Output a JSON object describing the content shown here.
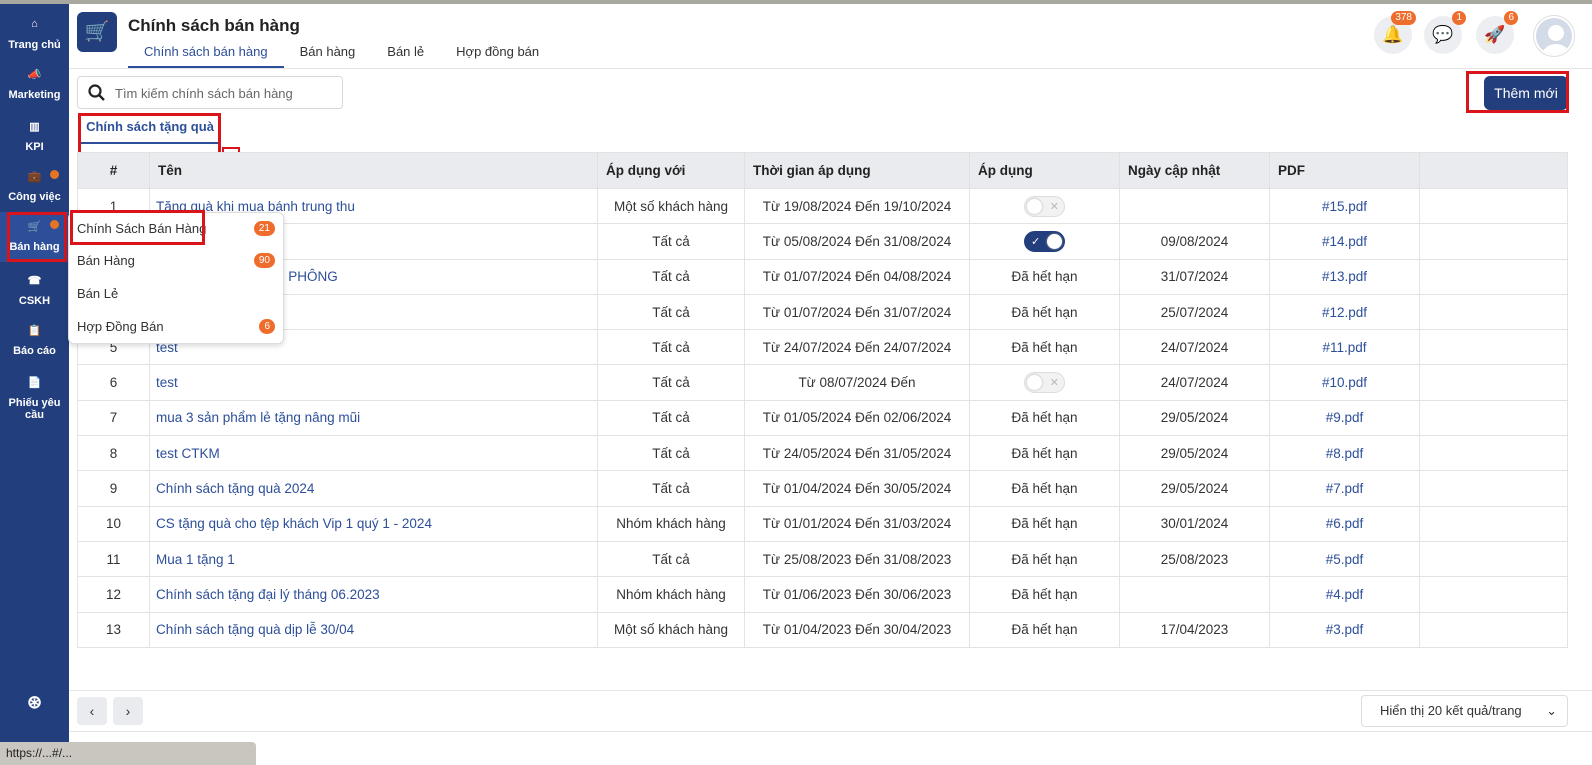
{
  "sidebar": {
    "items": [
      {
        "label": "Trang chủ",
        "icon": "home-icon"
      },
      {
        "label": "Marketing",
        "icon": "megaphone-icon"
      },
      {
        "label": "KPI",
        "icon": "chart-icon"
      },
      {
        "label": "Công việc",
        "icon": "briefcase-icon",
        "dot": true
      },
      {
        "label": "Bán hàng",
        "icon": "cart-icon",
        "dot": true,
        "active": true
      },
      {
        "label": "CSKH",
        "icon": "phone-icon"
      },
      {
        "label": "Báo cáo",
        "icon": "clipboard-icon"
      },
      {
        "label": "Phiếu yêu cầu",
        "icon": "file-icon"
      }
    ]
  },
  "header": {
    "title": "Chính sách bán hàng",
    "tabs": [
      "Chính sách bán hàng",
      "Bán hàng",
      "Bán lẻ",
      "Hợp đồng bán"
    ],
    "badges": {
      "notifications": "378",
      "messages": "1",
      "rocket": "6"
    }
  },
  "search": {
    "placeholder": "Tìm kiếm chính sách bán hàng"
  },
  "add_button": "Thêm mới",
  "subtab": "Chính sách tặng quà",
  "table": {
    "columns": [
      "#",
      "Tên",
      "Áp dụng với",
      "Thời gian áp dụng",
      "Áp dụng",
      "Ngày cập nhật",
      "PDF"
    ],
    "rows": [
      [
        "1",
        "Tặng quà khi mua bánh trung thu",
        "Một số khách hàng",
        "Từ 19/08/2024 Đến 19/10/2024",
        "toggle-off",
        "",
        "#15.pdf"
      ],
      [
        "2",
        "",
        "Tất cả",
        "Từ 05/08/2024 Đến 31/08/2024",
        "toggle-on",
        "09/08/2024",
        "#14.pdf"
      ],
      [
        "3",
        ") PHÔNG",
        "Tất cả",
        "Từ 01/07/2024 Đến 04/08/2024",
        "Đã hết hạn",
        "31/07/2024",
        "#13.pdf"
      ],
      [
        "4",
        "",
        "Tất cả",
        "Từ 01/07/2024 Đến 31/07/2024",
        "Đã hết hạn",
        "25/07/2024",
        "#12.pdf"
      ],
      [
        "5",
        "test",
        "Tất cả",
        "Từ 24/07/2024 Đến 24/07/2024",
        "Đã hết hạn",
        "24/07/2024",
        "#11.pdf"
      ],
      [
        "6",
        "test",
        "Tất cả",
        "Từ 08/07/2024 Đến",
        "toggle-off",
        "24/07/2024",
        "#10.pdf"
      ],
      [
        "7",
        "mua 3 sản phẩm lẻ tặng nâng mũi",
        "Tất cả",
        "Từ 01/05/2024 Đến 02/06/2024",
        "Đã hết hạn",
        "29/05/2024",
        "#9.pdf"
      ],
      [
        "8",
        "test CTKM",
        "Tất cả",
        "Từ 24/05/2024 Đến 31/05/2024",
        "Đã hết hạn",
        "29/05/2024",
        "#8.pdf"
      ],
      [
        "9",
        "Chính sách tặng quà 2024",
        "Tất cả",
        "Từ 01/04/2024 Đến 30/05/2024",
        "Đã hết hạn",
        "29/05/2024",
        "#7.pdf"
      ],
      [
        "10",
        "CS tặng quà cho tệp khách Vip 1 quý 1 - 2024",
        "Nhóm khách hàng",
        "Từ 01/01/2024 Đến 31/03/2024",
        "Đã hết hạn",
        "30/01/2024",
        "#6.pdf"
      ],
      [
        "11",
        "Mua 1 tặng 1",
        "Tất cả",
        "Từ 25/08/2023 Đến 31/08/2023",
        "Đã hết hạn",
        "25/08/2023",
        "#5.pdf"
      ],
      [
        "12",
        "Chính sách tặng đại lý tháng 06.2023",
        "Nhóm khách hàng",
        "Từ 01/06/2023 Đến 30/06/2023",
        "Đã hết hạn",
        "",
        "#4.pdf"
      ],
      [
        "13",
        "Chính sách tặng quà dịp lễ 30/04",
        "Một số khách hàng",
        "Từ 01/04/2023 Đến 30/04/2023",
        "Đã hết hạn",
        "17/04/2023",
        "#3.pdf"
      ]
    ]
  },
  "dropdown_menu": [
    {
      "label": "Chính Sách Bán Hàng",
      "count": "21"
    },
    {
      "label": "Bán Hàng",
      "count": "90"
    },
    {
      "label": "Bán Lẻ",
      "count": null
    },
    {
      "label": "Hợp Đồng Bán",
      "count": "6"
    }
  ],
  "footer": {
    "page_size": "Hiển thị 20 kết quả/trang"
  },
  "status_bar": "https://...#/...",
  "colors": {
    "primary": "#233e7c",
    "badge": "#ef6d2c",
    "highlight": "#d9141b"
  }
}
